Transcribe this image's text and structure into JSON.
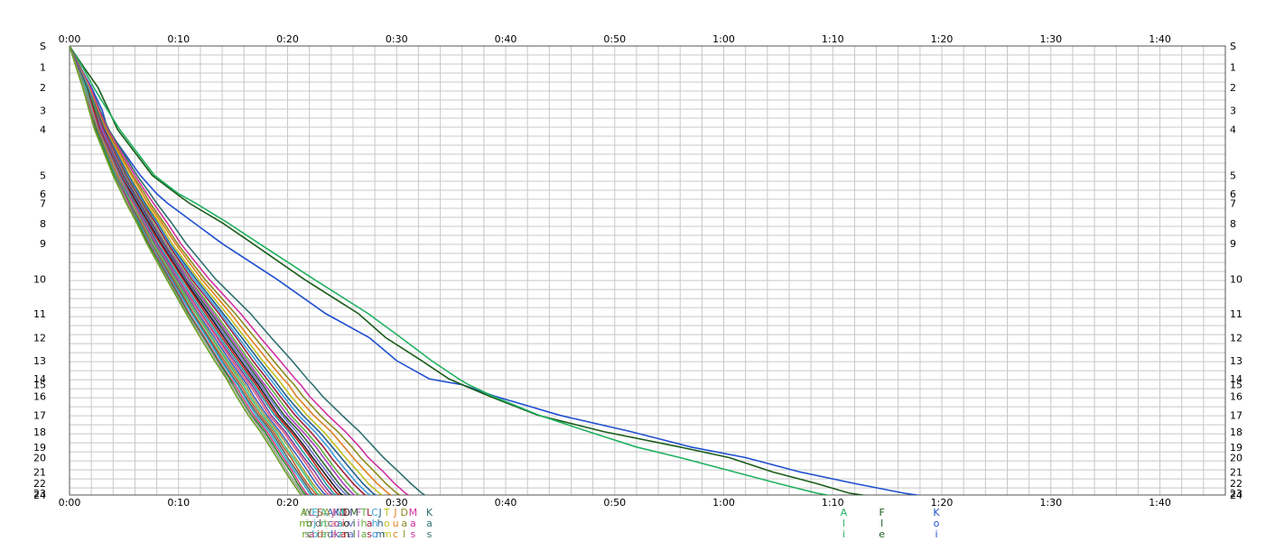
{
  "chart_data": {
    "type": "line",
    "title": "",
    "xlabel": "",
    "ylabel": "",
    "x_ticks": [
      "0:00",
      "0:10",
      "0:20",
      "0:30",
      "0:40",
      "0:50",
      "1:00",
      "1:10",
      "1:20",
      "1:30",
      "1:40"
    ],
    "x_range_minutes": [
      0,
      106
    ],
    "y_ticks": [
      "S",
      "1",
      "2",
      "3",
      "4",
      "5",
      "6",
      "7",
      "8",
      "9",
      "10",
      "11",
      "12",
      "13",
      "14",
      "15",
      "16",
      "17",
      "18",
      "19",
      "20",
      "21",
      "22",
      "23",
      "24"
    ],
    "y_range_km": [
      0,
      4.68
    ],
    "control_distances_km": [
      0,
      0.22,
      0.43,
      0.67,
      0.87,
      1.35,
      1.54,
      1.64,
      1.85,
      2.06,
      2.43,
      2.79,
      3.04,
      3.28,
      3.47,
      3.53,
      3.65,
      3.85,
      4.02,
      4.18,
      4.29,
      4.44,
      4.56,
      4.66,
      4.71
    ],
    "grid": true,
    "legend": "bottom",
    "series": [
      {
        "name": "Koi",
        "color": "#1f4fd0",
        "split_times_min": [
          0,
          0.98,
          2.0,
          3.0,
          3.5,
          6.5,
          8.0,
          9.0,
          11.5,
          14.0,
          19.0,
          23.5,
          27.5,
          30.0,
          33.0,
          36.0,
          39.0,
          45.0,
          51.5,
          57.0,
          62.0,
          67.0,
          72.0,
          76.5,
          79.5
        ]
      },
      {
        "name": "Fle",
        "color": "#1a5c1a",
        "split_times_min": [
          0,
          1.3,
          2.6,
          3.6,
          4.4,
          7.6,
          9.8,
          11.0,
          14.1,
          16.8,
          21.5,
          26.5,
          29.0,
          32.3,
          34.8,
          36.0,
          38.5,
          43.0,
          49.0,
          56.0,
          60.5,
          64.5,
          68.5,
          71.5,
          74.5
        ]
      },
      {
        "name": "Ali",
        "color": "#20b060",
        "split_times_min": [
          0,
          1.2,
          2.2,
          3.5,
          4.6,
          7.8,
          10.0,
          11.6,
          14.6,
          17.4,
          22.4,
          27.4,
          30.4,
          33.2,
          35.7,
          36.6,
          38.8,
          43.1,
          47.6,
          52.0,
          56.0,
          61.0,
          65.0,
          68.5,
          71.0
        ]
      },
      {
        "name": "Kasz",
        "color": "#307070",
        "split_times_min": [
          0,
          1.0,
          1.9,
          2.8,
          3.6,
          6.2,
          7.4,
          8.0,
          9.4,
          10.7,
          13.4,
          16.6,
          18.5,
          20.4,
          21.8,
          22.3,
          23.2,
          25.0,
          26.6,
          27.9,
          28.8,
          30.2,
          31.3,
          32.3,
          33.0
        ]
      },
      {
        "name": "Mas",
        "color": "#d030a0",
        "split_times_min": [
          0,
          0.95,
          1.9,
          2.7,
          3.5,
          6.0,
          7.1,
          7.7,
          9.0,
          10.2,
          12.8,
          15.7,
          17.5,
          19.3,
          20.7,
          21.2,
          22.0,
          23.7,
          25.3,
          26.6,
          27.4,
          28.8,
          29.8,
          30.8,
          31.5
        ]
      },
      {
        "name": "Dalev",
        "color": "#8a8a20",
        "split_times_min": [
          0,
          0.9,
          1.8,
          2.6,
          3.4,
          5.8,
          6.9,
          7.4,
          8.7,
          9.9,
          12.4,
          15.2,
          17.0,
          18.7,
          20.1,
          20.6,
          21.4,
          23.0,
          24.6,
          25.9,
          26.7,
          28.0,
          29.0,
          30.0,
          30.7
        ]
      },
      {
        "name": "Juc",
        "color": "#e08020",
        "split_times_min": [
          0,
          0.9,
          1.8,
          2.6,
          3.3,
          5.7,
          6.7,
          7.2,
          8.5,
          9.7,
          12.1,
          14.8,
          16.5,
          18.2,
          19.6,
          20.1,
          20.8,
          22.4,
          24.0,
          25.2,
          26.0,
          27.2,
          28.2,
          29.2,
          29.9
        ]
      },
      {
        "name": "Tom",
        "color": "#c0c020",
        "split_times_min": [
          0,
          0.9,
          1.7,
          2.5,
          3.2,
          5.5,
          6.5,
          7.0,
          8.3,
          9.4,
          11.8,
          14.4,
          16.1,
          17.7,
          19.1,
          19.5,
          20.3,
          21.8,
          23.3,
          24.5,
          25.3,
          26.5,
          27.4,
          28.4,
          29.1
        ]
      },
      {
        "name": "Jhm",
        "color": "#206090",
        "split_times_min": [
          0,
          0.85,
          1.7,
          2.5,
          3.2,
          5.4,
          6.4,
          6.9,
          8.1,
          9.2,
          11.6,
          14.1,
          15.8,
          17.4,
          18.7,
          19.1,
          19.9,
          21.4,
          22.9,
          24.1,
          24.9,
          26.0,
          26.9,
          27.8,
          28.5
        ]
      },
      {
        "name": "Chor",
        "color": "#40a0e0",
        "split_times_min": [
          0,
          0.85,
          1.7,
          2.4,
          3.1,
          5.3,
          6.3,
          6.8,
          8.0,
          9.1,
          11.4,
          13.9,
          15.5,
          17.1,
          18.4,
          18.8,
          19.6,
          21.0,
          22.5,
          23.7,
          24.4,
          25.5,
          26.4,
          27.3,
          28.0
        ]
      },
      {
        "name": "Lasl",
        "color": "#a02040",
        "split_times_min": [
          0,
          0.85,
          1.6,
          2.4,
          3.1,
          5.2,
          6.2,
          6.7,
          7.9,
          9.0,
          11.2,
          13.7,
          15.3,
          16.8,
          18.1,
          18.5,
          19.3,
          20.7,
          22.1,
          23.3,
          24.0,
          25.1,
          26.0,
          26.9,
          27.5
        ]
      },
      {
        "name": "Thao",
        "color": "#60b040",
        "split_times_min": [
          0,
          0.8,
          1.6,
          2.4,
          3.0,
          5.1,
          6.1,
          6.6,
          7.7,
          8.8,
          11.0,
          13.4,
          15.0,
          16.5,
          17.8,
          18.2,
          19.0,
          20.3,
          21.7,
          22.9,
          23.6,
          24.6,
          25.5,
          26.3,
          27.0
        ]
      },
      {
        "name": "Fil",
        "color": "#b040c0",
        "split_times_min": [
          0,
          0.8,
          1.6,
          2.3,
          3.0,
          5.0,
          6.0,
          6.5,
          7.6,
          8.7,
          10.9,
          13.2,
          14.8,
          16.3,
          17.5,
          17.9,
          18.7,
          20.0,
          21.4,
          22.6,
          23.3,
          24.3,
          25.1,
          25.9,
          26.5
        ]
      },
      {
        "name": "Mil",
        "color": "#306030",
        "split_times_min": [
          0,
          0.8,
          1.6,
          2.3,
          2.9,
          4.9,
          5.9,
          6.4,
          7.5,
          8.6,
          10.7,
          13.0,
          14.6,
          16.1,
          17.3,
          17.7,
          18.4,
          19.7,
          21.1,
          22.2,
          22.9,
          23.9,
          24.7,
          25.5,
          26.1
        ]
      },
      {
        "name": "Iva",
        "color": "#7070d0",
        "split_times_min": [
          0,
          0.8,
          1.5,
          2.2,
          2.9,
          4.8,
          5.8,
          6.3,
          7.4,
          8.5,
          10.6,
          12.8,
          14.4,
          15.9,
          17.1,
          17.5,
          18.2,
          19.5,
          20.8,
          21.9,
          22.6,
          23.6,
          24.4,
          25.2,
          25.8
        ]
      },
      {
        "name": "Don",
        "color": "#202020",
        "split_times_min": [
          0,
          0.75,
          1.5,
          2.2,
          2.8,
          4.7,
          5.7,
          6.2,
          7.3,
          8.4,
          10.5,
          12.7,
          14.2,
          15.7,
          16.9,
          17.3,
          18.0,
          19.2,
          20.5,
          21.6,
          22.3,
          23.3,
          24.1,
          24.8,
          25.4
        ]
      },
      {
        "name": "Dia",
        "color": "#c02020",
        "split_times_min": [
          0,
          0.75,
          1.5,
          2.2,
          2.8,
          4.7,
          5.6,
          6.1,
          7.2,
          8.3,
          10.4,
          12.5,
          14.0,
          15.5,
          16.7,
          17.1,
          17.8,
          19.0,
          20.3,
          21.4,
          22.1,
          23.0,
          23.8,
          24.5,
          25.1
        ]
      },
      {
        "name": "Maz",
        "color": "#20a0a0",
        "split_times_min": [
          0,
          0.75,
          1.5,
          2.1,
          2.7,
          4.6,
          5.5,
          6.0,
          7.1,
          8.1,
          10.2,
          12.3,
          13.8,
          15.3,
          16.5,
          16.9,
          17.6,
          18.8,
          20.1,
          21.1,
          21.8,
          22.8,
          23.5,
          24.2,
          24.8
        ]
      },
      {
        "name": "Kok",
        "color": "#8040a0",
        "split_times_min": [
          0,
          0.75,
          1.4,
          2.1,
          2.7,
          4.5,
          5.4,
          5.9,
          7.0,
          8.0,
          10.0,
          12.1,
          13.6,
          15.1,
          16.3,
          16.7,
          17.4,
          18.5,
          19.8,
          20.8,
          21.5,
          22.5,
          23.2,
          23.9,
          24.5
        ]
      },
      {
        "name": "Jaz",
        "color": "#e06080",
        "split_times_min": [
          0,
          0.7,
          1.4,
          2.1,
          2.6,
          4.5,
          5.4,
          5.8,
          6.9,
          7.9,
          9.9,
          12.0,
          13.5,
          14.9,
          16.1,
          16.5,
          17.2,
          18.3,
          19.6,
          20.6,
          21.3,
          22.2,
          22.9,
          23.6,
          24.2
        ]
      },
      {
        "name": "Acdc",
        "color": "#4060c0",
        "split_times_min": [
          0,
          0.7,
          1.4,
          2.0,
          2.6,
          4.4,
          5.3,
          5.7,
          6.8,
          7.8,
          9.8,
          11.8,
          13.3,
          14.7,
          15.9,
          16.3,
          16.9,
          18.1,
          19.3,
          20.3,
          21.0,
          21.9,
          22.6,
          23.3,
          23.9
        ]
      },
      {
        "name": "Abn",
        "color": "#a0a040",
        "split_times_min": [
          0,
          0.7,
          1.4,
          2.0,
          2.6,
          4.4,
          5.2,
          5.7,
          6.7,
          7.7,
          9.7,
          11.7,
          13.1,
          14.5,
          15.7,
          16.1,
          16.7,
          17.9,
          19.1,
          20.1,
          20.7,
          21.6,
          22.3,
          23.0,
          23.6
        ]
      },
      {
        "name": "Ane",
        "color": "#40c080",
        "split_times_min": [
          0,
          0.7,
          1.4,
          2.0,
          2.5,
          4.3,
          5.2,
          5.6,
          6.6,
          7.6,
          9.6,
          11.6,
          13.0,
          14.4,
          15.5,
          15.9,
          16.5,
          17.7,
          18.9,
          19.8,
          20.5,
          21.4,
          22.1,
          22.7,
          23.3
        ]
      },
      {
        "name": "Sid",
        "color": "#c06030",
        "split_times_min": [
          0,
          0.7,
          1.3,
          1.9,
          2.5,
          4.3,
          5.1,
          5.5,
          6.6,
          7.5,
          9.5,
          11.4,
          12.8,
          14.2,
          15.3,
          15.7,
          16.3,
          17.5,
          18.7,
          19.6,
          20.3,
          21.1,
          21.8,
          22.5,
          23.0
        ]
      },
      {
        "name": "Jdi",
        "color": "#606060",
        "split_times_min": [
          0,
          0.7,
          1.3,
          1.9,
          2.5,
          4.2,
          5.1,
          5.5,
          6.5,
          7.4,
          9.4,
          11.3,
          12.7,
          14.0,
          15.1,
          15.5,
          16.1,
          17.3,
          18.5,
          19.4,
          20.0,
          20.9,
          21.6,
          22.2,
          22.8
        ]
      },
      {
        "name": "Ejb",
        "color": "#30b0d0",
        "split_times_min": [
          0,
          0.65,
          1.3,
          1.9,
          2.4,
          4.2,
          5.0,
          5.4,
          6.4,
          7.4,
          9.3,
          11.2,
          12.6,
          13.9,
          15.0,
          15.4,
          16.0,
          17.1,
          18.3,
          19.2,
          19.8,
          20.7,
          21.4,
          22.0,
          22.5
        ]
      },
      {
        "name": "Lra",
        "color": "#d04080",
        "split_times_min": [
          0,
          0.65,
          1.3,
          1.9,
          2.4,
          4.1,
          5.0,
          5.4,
          6.3,
          7.3,
          9.2,
          11.0,
          12.4,
          13.7,
          14.8,
          15.2,
          15.8,
          16.9,
          18.1,
          19.0,
          19.6,
          20.5,
          21.1,
          21.7,
          22.2
        ]
      },
      {
        "name": "Yoc",
        "color": "#2a8a2a",
        "split_times_min": [
          0,
          0.65,
          1.3,
          1.8,
          2.4,
          4.1,
          4.9,
          5.3,
          6.3,
          7.2,
          9.1,
          10.9,
          12.3,
          13.6,
          14.7,
          15.0,
          15.6,
          16.7,
          17.9,
          18.8,
          19.4,
          20.3,
          20.9,
          21.5,
          22.0
        ]
      },
      {
        "name": "Wis",
        "color": "#9a9a9a",
        "split_times_min": [
          0,
          0.65,
          1.3,
          1.8,
          2.3,
          4.0,
          4.9,
          5.3,
          6.2,
          7.1,
          9.0,
          10.8,
          12.2,
          13.5,
          14.5,
          14.9,
          15.5,
          16.6,
          17.7,
          18.6,
          19.2,
          20.0,
          20.7,
          21.3,
          21.8
        ]
      },
      {
        "name": "Amr",
        "color": "#6aa020",
        "split_times_min": [
          0,
          0.6,
          1.2,
          1.8,
          2.3,
          4.0,
          4.8,
          5.2,
          6.2,
          7.1,
          8.9,
          10.7,
          12.0,
          13.3,
          14.4,
          14.7,
          15.3,
          16.4,
          17.5,
          18.4,
          19.0,
          19.8,
          20.5,
          21.1,
          21.5
        ]
      }
    ]
  }
}
